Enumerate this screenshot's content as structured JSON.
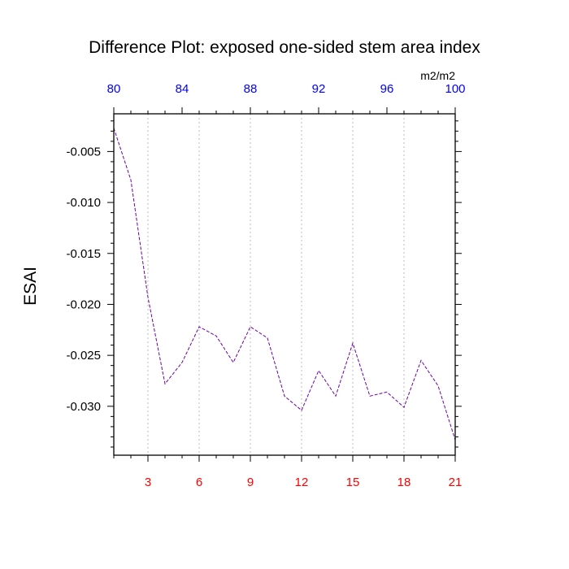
{
  "chart_data": {
    "type": "line",
    "title": "Difference Plot: exposed one-sided stem area index",
    "ylabel": "ESAI",
    "top_axis_unit": "m2/m2",
    "x": [
      1,
      2,
      3,
      4,
      5,
      6,
      7,
      8,
      9,
      10,
      11,
      12,
      13,
      14,
      15,
      16,
      17,
      18,
      19,
      20,
      21
    ],
    "xlim": [
      1,
      21
    ],
    "x_ticks": [
      3,
      6,
      9,
      12,
      15,
      18,
      21
    ],
    "x_tick_labels": [
      "3",
      "6",
      "9",
      "12",
      "15",
      "18",
      "21"
    ],
    "top_x_ticks": [
      80,
      84,
      88,
      92,
      96,
      100
    ],
    "top_x_tick_labels": [
      "80",
      "84",
      "88",
      "92",
      "96",
      "100"
    ],
    "top_xlim": [
      80,
      100
    ],
    "ylim": [
      -0.0348,
      -0.0013
    ],
    "y_ticks": [
      -0.005,
      -0.01,
      -0.015,
      -0.02,
      -0.025,
      -0.03
    ],
    "y_tick_labels": [
      "-0.005",
      "-0.010",
      "-0.015",
      "-0.020",
      "-0.025",
      "-0.030"
    ],
    "grid": "vertical dotted at bottom ticks",
    "series": [
      {
        "values": [
          -0.0027,
          -0.0078,
          -0.0193,
          -0.0278,
          -0.0257,
          -0.0222,
          -0.0231,
          -0.0257,
          -0.0222,
          -0.0233,
          -0.029,
          -0.0304,
          -0.0265,
          -0.029,
          -0.0238,
          -0.029,
          -0.0286,
          -0.0301,
          -0.0255,
          -0.028,
          -0.0333
        ],
        "color": "#6b00a8",
        "style": "dashed"
      }
    ],
    "colors": {
      "bottom_ticks": "#ff0000",
      "top_ticks": "#0000ff",
      "line": "#6b00a8",
      "grid": "#bbbbbb"
    }
  }
}
